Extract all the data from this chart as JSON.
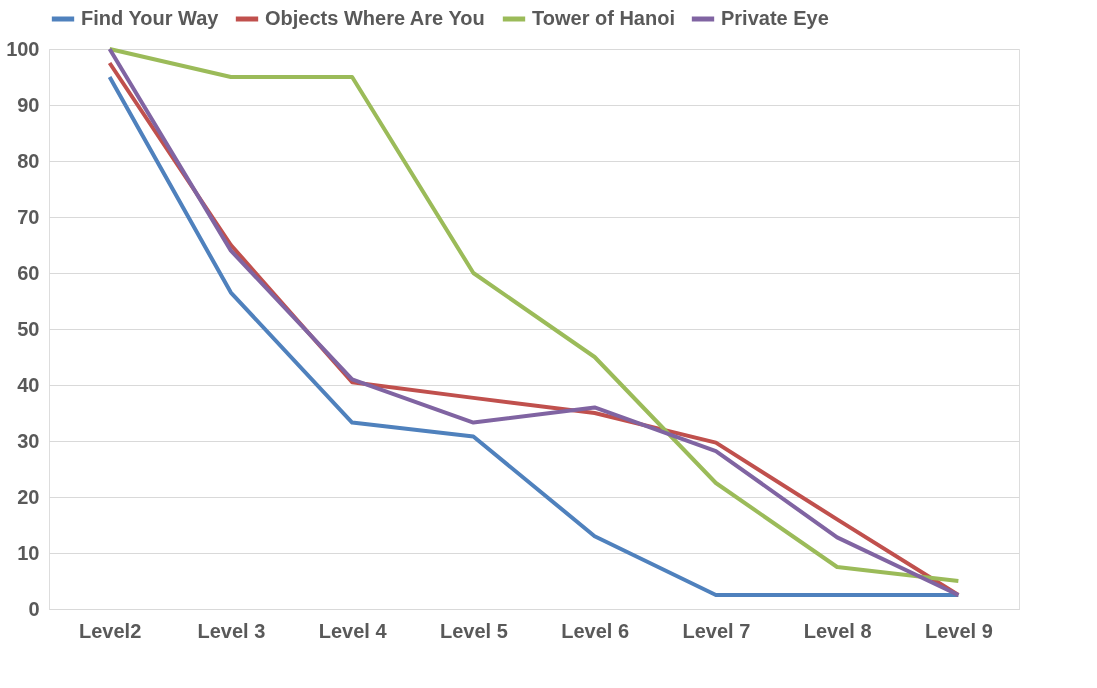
{
  "chart_data": {
    "type": "line",
    "categories": [
      "Level2",
      "Level 3",
      "Level 4",
      "Level 5",
      "Level 6",
      "Level 7",
      "Level 8",
      "Level 9"
    ],
    "series": [
      {
        "name": "Find Your Way",
        "color": "#4f81bd",
        "values": [
          95,
          56.5,
          33.3,
          30.8,
          13,
          2.5,
          2.5,
          2.5
        ]
      },
      {
        "name": "Objects Where Are You",
        "color": "#c0504d",
        "values": [
          97.5,
          65,
          40.5,
          37.7,
          35,
          29.7,
          16,
          2.5
        ]
      },
      {
        "name": "Tower of Hanoi",
        "color": "#9bbb59",
        "values": [
          100,
          95,
          95,
          60,
          45,
          22.5,
          7.5,
          5
        ]
      },
      {
        "name": "Private Eye",
        "color": "#8064a2",
        "values": [
          100,
          64,
          41,
          33.3,
          36,
          28.2,
          12.8,
          2.5
        ]
      }
    ],
    "ylim": [
      0,
      100
    ],
    "yticks": [
      0,
      10,
      20,
      30,
      40,
      50,
      60,
      70,
      80,
      90,
      100
    ],
    "grid": "y",
    "legend": "top",
    "marker": "none",
    "line_style": "solid"
  }
}
